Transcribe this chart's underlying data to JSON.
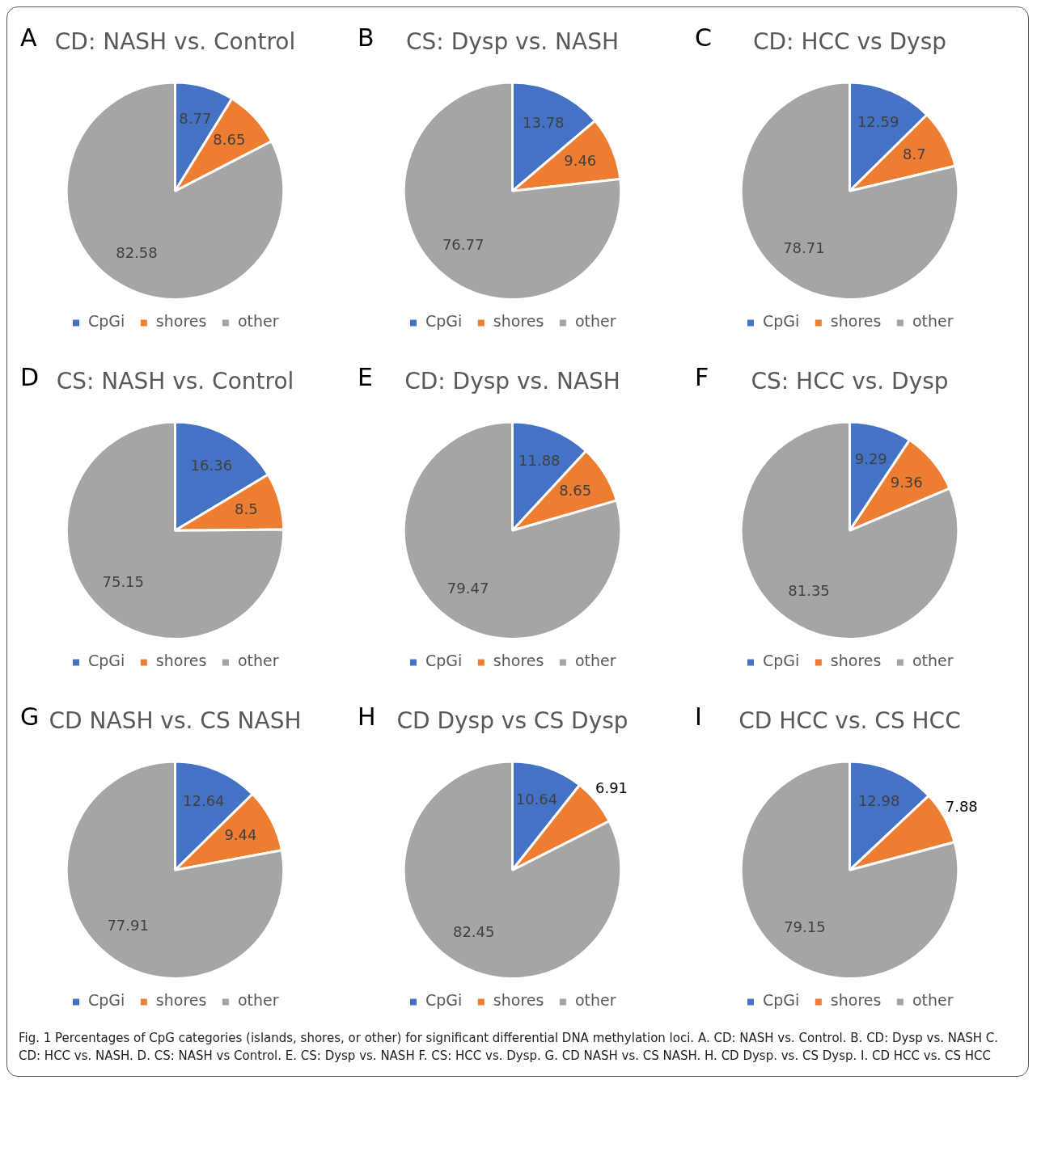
{
  "chart_data": [
    {
      "type": "pie",
      "title": "CD: NASH vs. Control",
      "categories": [
        "CpGi",
        "shores",
        "other"
      ],
      "values": [
        8.77,
        8.65,
        82.58
      ],
      "colors": [
        "#4472c4",
        "#ed7d31",
        "#a5a5a5"
      ],
      "data_labels": true,
      "legend": "bottom",
      "annotations": [
        "A"
      ]
    },
    {
      "type": "pie",
      "title": "CS: Dysp vs. NASH",
      "categories": [
        "CpGi",
        "shores",
        "other"
      ],
      "values": [
        13.78,
        9.46,
        76.77
      ],
      "colors": [
        "#4472c4",
        "#ed7d31",
        "#a5a5a5"
      ],
      "data_labels": true,
      "legend": "bottom",
      "annotations": [
        "B"
      ]
    },
    {
      "type": "pie",
      "title": "CD: HCC vs Dysp",
      "categories": [
        "CpGi",
        "shores",
        "other"
      ],
      "values": [
        12.59,
        8.7,
        78.71
      ],
      "colors": [
        "#4472c4",
        "#ed7d31",
        "#a5a5a5"
      ],
      "data_labels": true,
      "legend": "bottom",
      "annotations": [
        "C"
      ]
    },
    {
      "type": "pie",
      "title": "CS: NASH vs. Control",
      "categories": [
        "CpGi",
        "shores",
        "other"
      ],
      "values": [
        16.36,
        8.5,
        75.15
      ],
      "colors": [
        "#4472c4",
        "#ed7d31",
        "#a5a5a5"
      ],
      "data_labels": true,
      "legend": "bottom",
      "annotations": [
        "D"
      ]
    },
    {
      "type": "pie",
      "title": "CD: Dysp vs. NASH",
      "categories": [
        "CpGi",
        "shores",
        "other"
      ],
      "values": [
        11.88,
        8.65,
        79.47
      ],
      "colors": [
        "#4472c4",
        "#ed7d31",
        "#a5a5a5"
      ],
      "data_labels": true,
      "legend": "bottom",
      "annotations": [
        "E"
      ]
    },
    {
      "type": "pie",
      "title": "CS: HCC vs. Dysp",
      "categories": [
        "CpGi",
        "shores",
        "other"
      ],
      "values": [
        9.29,
        9.36,
        81.35
      ],
      "colors": [
        "#4472c4",
        "#ed7d31",
        "#a5a5a5"
      ],
      "data_labels": true,
      "legend": "bottom",
      "annotations": [
        "F"
      ]
    },
    {
      "type": "pie",
      "title": "CD NASH vs. CS NASH",
      "categories": [
        "CpGi",
        "shores",
        "other"
      ],
      "values": [
        12.64,
        9.44,
        77.91
      ],
      "colors": [
        "#4472c4",
        "#ed7d31",
        "#a5a5a5"
      ],
      "data_labels": true,
      "legend": "bottom",
      "annotations": [
        "G"
      ]
    },
    {
      "type": "pie",
      "title": "CD Dysp vs CS Dysp",
      "categories": [
        "CpGi",
        "shores",
        "other"
      ],
      "values": [
        10.64,
        6.91,
        82.45
      ],
      "colors": [
        "#4472c4",
        "#ed7d31",
        "#a5a5a5"
      ],
      "data_labels": true,
      "legend": "bottom",
      "annotations": [
        "H"
      ]
    },
    {
      "type": "pie",
      "title": "CD HCC vs. CS HCC",
      "categories": [
        "CpGi",
        "shores",
        "other"
      ],
      "values": [
        12.98,
        7.88,
        79.15
      ],
      "colors": [
        "#4472c4",
        "#ed7d31",
        "#a5a5a5"
      ],
      "data_labels": true,
      "legend": "bottom",
      "annotations": [
        "I",
        "Fig. 1  Percentages of CpG categories (islands, shores, or other) for significant differential DNA methylation loci. A. CD: NASH vs. Control. B. CD: Dysp vs. NASH C. CD: HCC vs. NASH. D. CS: NASH vs Control. E. CS: Dysp vs. NASH F. CS: HCC vs. Dysp. G. CD NASH vs. CS NASH. H. CD Dysp. vs. CS Dysp. I. CD HCC vs. CS HCC"
      ]
    }
  ]
}
